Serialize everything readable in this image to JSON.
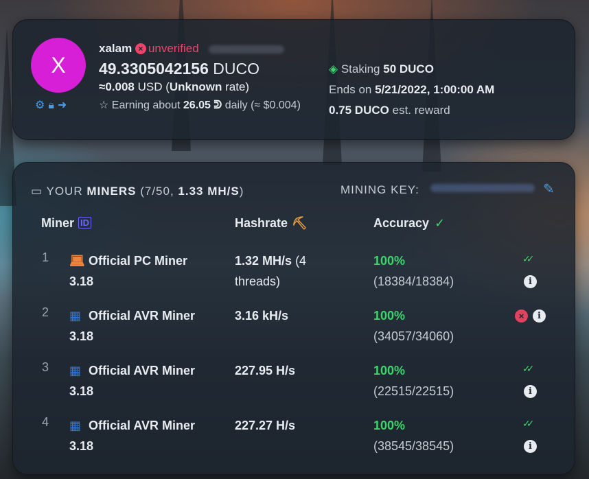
{
  "profile": {
    "avatar_letter": "X",
    "username": "xalam",
    "verification_status": "unverified",
    "balance_amount": "49.3305042156",
    "balance_unit": "DUCO",
    "usd_prefix": "≈0.008",
    "usd_middle": "USD (",
    "usd_rate": "Unknown",
    "usd_suffix": "rate)",
    "earning_prefix": "Earning about",
    "earning_amount": "26.05 ᕲ",
    "earning_suffix": "daily (≈ $0.004)",
    "actions": [
      "gear-icon",
      "lock-icon",
      "logout-icon"
    ]
  },
  "staking": {
    "label": "Staking",
    "amount": "50 DUCO",
    "ends_label": "Ends on",
    "ends_date": "5/21/2022, 1:00:00 AM",
    "reward_amount": "0.75 DUCO",
    "reward_label": "est. reward"
  },
  "miners": {
    "title_prefix": "YOUR",
    "title_bold": "MINERS",
    "count": "(7/50,",
    "total_hashrate": "1.33 MH/S",
    "count_close": ")",
    "key_label": "MINING KEY:",
    "columns": {
      "miner": "Miner",
      "hashrate": "Hashrate",
      "accuracy": "Accuracy"
    },
    "rows": [
      {
        "num": "1",
        "name": "Official PC Miner",
        "version": "3.18",
        "icon": "laptop-icon",
        "hashrate": "1.32 MH/s",
        "hashrate_extra": "(4 threads)",
        "accuracy": "100%",
        "shares": "(18384/18384)",
        "status": "ok"
      },
      {
        "num": "2",
        "name": "Official AVR Miner",
        "version": "3.18",
        "icon": "arduino-board-icon",
        "hashrate": "3.16 kH/s",
        "hashrate_extra": "",
        "accuracy": "100%",
        "shares": "(34057/34060)",
        "status": "error"
      },
      {
        "num": "3",
        "name": "Official AVR Miner",
        "version": "3.18",
        "icon": "arduino-board-icon",
        "hashrate": "227.95 H/s",
        "hashrate_extra": "",
        "accuracy": "100%",
        "shares": "(22515/22515)",
        "status": "ok"
      },
      {
        "num": "4",
        "name": "Official AVR Miner",
        "version": "3.18",
        "icon": "arduino-board-icon",
        "hashrate": "227.27 H/s",
        "hashrate_extra": "",
        "accuracy": "100%",
        "shares": "(38545/38545)",
        "status": "ok"
      }
    ]
  },
  "colors": {
    "avatar": "#d61fd6",
    "unverified": "#f0436b",
    "accent_blue": "#4a9be8",
    "success_green": "#3fd36b",
    "card_bg": "#1c242e"
  }
}
